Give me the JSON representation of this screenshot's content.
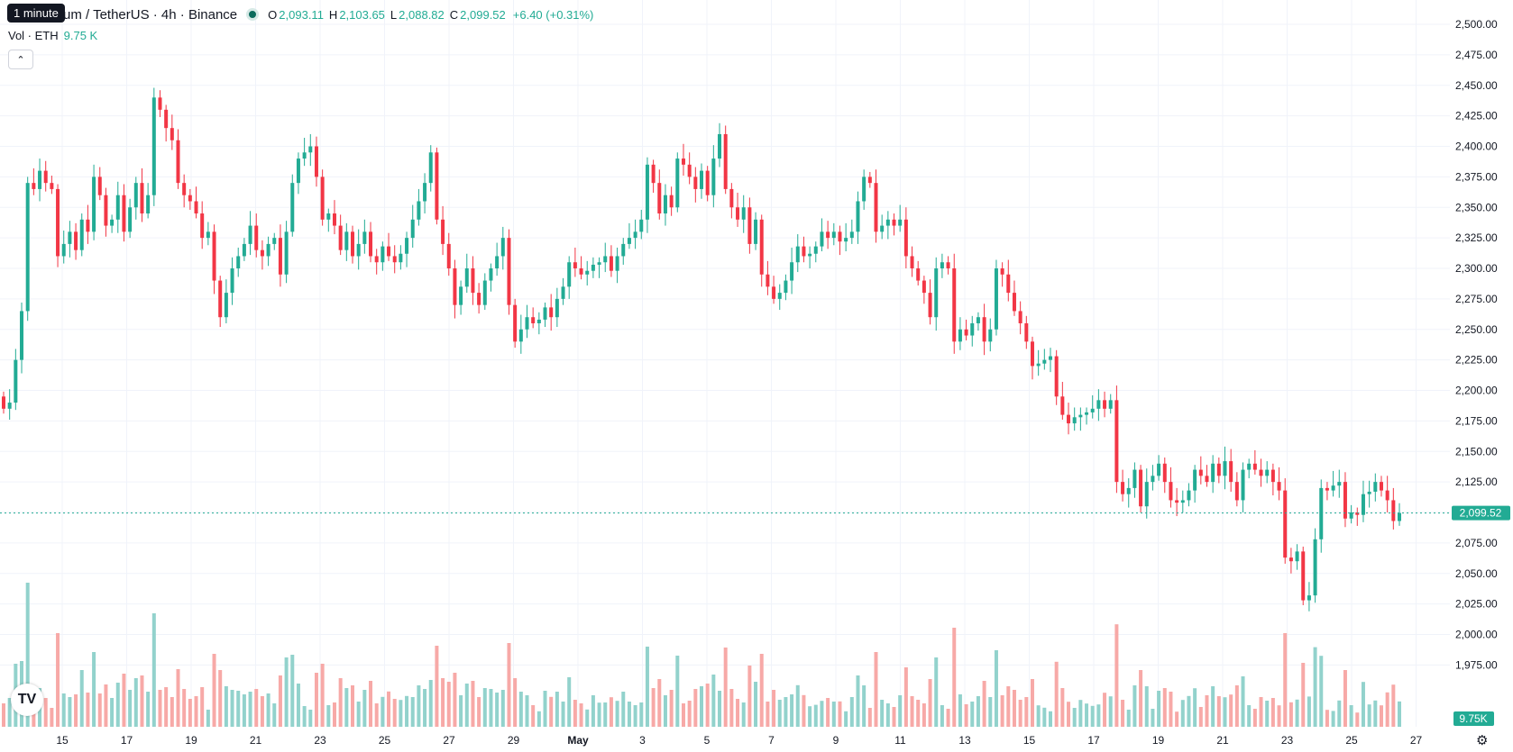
{
  "header": {
    "tooltip": "1 minute",
    "symbol": "um / TetherUS · 4h · Binance",
    "ohlc": {
      "o_label": "O",
      "o": "2,093.11",
      "h_label": "H",
      "h": "2,103.65",
      "l_label": "L",
      "l": "2,088.82",
      "c_label": "C",
      "c": "2,099.52",
      "change": "+6.40 (+0.31%)"
    },
    "volume_label": "Vol · ETH",
    "volume_value": "9.75 K",
    "collapse_icon": "chevron-up-icon"
  },
  "logo_text": "TV",
  "settings_icon": "gear-icon",
  "colors": {
    "up": "#22ab94",
    "down": "#f23645",
    "vol_up": "#92d2cc",
    "vol_down": "#f7a9a7",
    "grid": "#f0f3fa",
    "text": "#131722"
  },
  "chart_data": {
    "type": "candlestick",
    "price_axis_ticks": [
      "2,500.00",
      "2,475.00",
      "2,450.00",
      "2,425.00",
      "2,400.00",
      "2,375.00",
      "2,350.00",
      "2,325.00",
      "2,300.00",
      "2,275.00",
      "2,250.00",
      "2,225.00",
      "2,200.00",
      "2,175.00",
      "2,150.00",
      "2,125.00",
      "2,100.00",
      "2,075.00",
      "2,050.00",
      "2,025.00",
      "2,000.00",
      "1,975.00"
    ],
    "price_axis_range": [
      1975,
      2500
    ],
    "time_axis_labels": [
      "15",
      "17",
      "19",
      "21",
      "23",
      "25",
      "27",
      "29",
      "May",
      "3",
      "5",
      "7",
      "9",
      "11",
      "13",
      "15",
      "17",
      "19",
      "21",
      "23",
      "25",
      "27"
    ],
    "current_price_label": "2,099.52",
    "current_price": 2099.52,
    "current_volume_label": "9.75K",
    "candles": [
      {
        "o": 2195,
        "c": 2185
      },
      {
        "o": 2185,
        "c": 2190
      },
      {
        "o": 2190,
        "c": 2225
      },
      {
        "o": 2225,
        "c": 2265
      },
      {
        "o": 2265,
        "c": 2370
      },
      {
        "o": 2370,
        "c": 2365
      },
      {
        "o": 2365,
        "c": 2380
      },
      {
        "o": 2380,
        "c": 2370
      },
      {
        "o": 2370,
        "c": 2365
      },
      {
        "o": 2365,
        "c": 2310
      },
      {
        "o": 2310,
        "c": 2320
      },
      {
        "o": 2320,
        "c": 2330
      },
      {
        "o": 2330,
        "c": 2315
      },
      {
        "o": 2315,
        "c": 2340
      },
      {
        "o": 2340,
        "c": 2330
      },
      {
        "o": 2330,
        "c": 2375
      },
      {
        "o": 2375,
        "c": 2360
      },
      {
        "o": 2360,
        "c": 2335
      },
      {
        "o": 2335,
        "c": 2340
      },
      {
        "o": 2340,
        "c": 2360
      },
      {
        "o": 2360,
        "c": 2330
      },
      {
        "o": 2330,
        "c": 2350
      },
      {
        "o": 2350,
        "c": 2370
      },
      {
        "o": 2370,
        "c": 2345
      },
      {
        "o": 2345,
        "c": 2360
      },
      {
        "o": 2360,
        "c": 2440
      },
      {
        "o": 2440,
        "c": 2430
      },
      {
        "o": 2430,
        "c": 2415
      },
      {
        "o": 2415,
        "c": 2405
      },
      {
        "o": 2405,
        "c": 2370
      },
      {
        "o": 2370,
        "c": 2360
      },
      {
        "o": 2360,
        "c": 2355
      },
      {
        "o": 2355,
        "c": 2345
      },
      {
        "o": 2345,
        "c": 2325
      },
      {
        "o": 2325,
        "c": 2330
      },
      {
        "o": 2330,
        "c": 2290
      },
      {
        "o": 2290,
        "c": 2260
      },
      {
        "o": 2260,
        "c": 2280
      },
      {
        "o": 2280,
        "c": 2300
      },
      {
        "o": 2300,
        "c": 2310
      },
      {
        "o": 2310,
        "c": 2320
      },
      {
        "o": 2320,
        "c": 2335
      },
      {
        "o": 2335,
        "c": 2315
      },
      {
        "o": 2315,
        "c": 2310
      },
      {
        "o": 2310,
        "c": 2320
      },
      {
        "o": 2320,
        "c": 2325
      },
      {
        "o": 2325,
        "c": 2295
      },
      {
        "o": 2295,
        "c": 2330
      },
      {
        "o": 2330,
        "c": 2370
      },
      {
        "o": 2370,
        "c": 2390
      },
      {
        "o": 2390,
        "c": 2395
      },
      {
        "o": 2395,
        "c": 2400
      },
      {
        "o": 2400,
        "c": 2375
      },
      {
        "o": 2375,
        "c": 2340
      },
      {
        "o": 2340,
        "c": 2345
      },
      {
        "o": 2345,
        "c": 2335
      },
      {
        "o": 2335,
        "c": 2315
      },
      {
        "o": 2315,
        "c": 2330
      },
      {
        "o": 2330,
        "c": 2310
      },
      {
        "o": 2310,
        "c": 2320
      },
      {
        "o": 2320,
        "c": 2330
      },
      {
        "o": 2330,
        "c": 2310
      },
      {
        "o": 2310,
        "c": 2305
      },
      {
        "o": 2305,
        "c": 2318
      },
      {
        "o": 2318,
        "c": 2310
      },
      {
        "o": 2310,
        "c": 2305
      },
      {
        "o": 2305,
        "c": 2312
      },
      {
        "o": 2312,
        "c": 2325
      },
      {
        "o": 2325,
        "c": 2340
      },
      {
        "o": 2340,
        "c": 2355
      },
      {
        "o": 2355,
        "c": 2370
      },
      {
        "o": 2370,
        "c": 2395
      },
      {
        "o": 2395,
        "c": 2340
      },
      {
        "o": 2340,
        "c": 2320
      },
      {
        "o": 2320,
        "c": 2300
      },
      {
        "o": 2300,
        "c": 2270
      },
      {
        "o": 2270,
        "c": 2285
      },
      {
        "o": 2285,
        "c": 2300
      },
      {
        "o": 2300,
        "c": 2280
      },
      {
        "o": 2280,
        "c": 2270
      },
      {
        "o": 2270,
        "c": 2290
      },
      {
        "o": 2290,
        "c": 2300
      },
      {
        "o": 2300,
        "c": 2310
      },
      {
        "o": 2310,
        "c": 2325
      },
      {
        "o": 2325,
        "c": 2270
      },
      {
        "o": 2270,
        "c": 2240
      },
      {
        "o": 2240,
        "c": 2250
      },
      {
        "o": 2250,
        "c": 2260
      },
      {
        "o": 2260,
        "c": 2255
      },
      {
        "o": 2255,
        "c": 2258
      },
      {
        "o": 2258,
        "c": 2268
      },
      {
        "o": 2268,
        "c": 2260
      },
      {
        "o": 2260,
        "c": 2275
      },
      {
        "o": 2275,
        "c": 2285
      },
      {
        "o": 2285,
        "c": 2305
      },
      {
        "o": 2305,
        "c": 2300
      },
      {
        "o": 2300,
        "c": 2295
      },
      {
        "o": 2295,
        "c": 2298
      },
      {
        "o": 2298,
        "c": 2303
      },
      {
        "o": 2303,
        "c": 2305
      },
      {
        "o": 2305,
        "c": 2310
      },
      {
        "o": 2310,
        "c": 2298
      },
      {
        "o": 2298,
        "c": 2310
      },
      {
        "o": 2310,
        "c": 2320
      },
      {
        "o": 2320,
        "c": 2325
      },
      {
        "o": 2325,
        "c": 2330
      },
      {
        "o": 2330,
        "c": 2340
      },
      {
        "o": 2340,
        "c": 2385
      },
      {
        "o": 2385,
        "c": 2370
      },
      {
        "o": 2370,
        "c": 2345
      },
      {
        "o": 2345,
        "c": 2360
      },
      {
        "o": 2360,
        "c": 2350
      },
      {
        "o": 2350,
        "c": 2390
      },
      {
        "o": 2390,
        "c": 2385
      },
      {
        "o": 2385,
        "c": 2375
      },
      {
        "o": 2375,
        "c": 2365
      },
      {
        "o": 2365,
        "c": 2380
      },
      {
        "o": 2380,
        "c": 2360
      },
      {
        "o": 2360,
        "c": 2390
      },
      {
        "o": 2390,
        "c": 2410
      },
      {
        "o": 2410,
        "c": 2365
      },
      {
        "o": 2365,
        "c": 2350
      },
      {
        "o": 2350,
        "c": 2340
      },
      {
        "o": 2340,
        "c": 2350
      },
      {
        "o": 2350,
        "c": 2320
      },
      {
        "o": 2320,
        "c": 2340
      },
      {
        "o": 2340,
        "c": 2295
      },
      {
        "o": 2295,
        "c": 2285
      },
      {
        "o": 2285,
        "c": 2275
      },
      {
        "o": 2275,
        "c": 2280
      },
      {
        "o": 2280,
        "c": 2290
      },
      {
        "o": 2290,
        "c": 2305
      },
      {
        "o": 2305,
        "c": 2318
      },
      {
        "o": 2318,
        "c": 2310
      },
      {
        "o": 2310,
        "c": 2312
      },
      {
        "o": 2312,
        "c": 2318
      },
      {
        "o": 2318,
        "c": 2330
      },
      {
        "o": 2330,
        "c": 2325
      },
      {
        "o": 2325,
        "c": 2330
      },
      {
        "o": 2330,
        "c": 2322
      },
      {
        "o": 2322,
        "c": 2325
      },
      {
        "o": 2325,
        "c": 2330
      },
      {
        "o": 2330,
        "c": 2355
      },
      {
        "o": 2355,
        "c": 2375
      },
      {
        "o": 2375,
        "c": 2370
      },
      {
        "o": 2370,
        "c": 2330
      },
      {
        "o": 2330,
        "c": 2335
      },
      {
        "o": 2335,
        "c": 2340
      },
      {
        "o": 2340,
        "c": 2335
      },
      {
        "o": 2335,
        "c": 2340
      },
      {
        "o": 2340,
        "c": 2310
      },
      {
        "o": 2310,
        "c": 2300
      },
      {
        "o": 2300,
        "c": 2290
      },
      {
        "o": 2290,
        "c": 2280
      },
      {
        "o": 2280,
        "c": 2260
      },
      {
        "o": 2260,
        "c": 2300
      },
      {
        "o": 2300,
        "c": 2305
      },
      {
        "o": 2305,
        "c": 2300
      },
      {
        "o": 2300,
        "c": 2240
      },
      {
        "o": 2240,
        "c": 2250
      },
      {
        "o": 2250,
        "c": 2245
      },
      {
        "o": 2245,
        "c": 2255
      },
      {
        "o": 2255,
        "c": 2260
      },
      {
        "o": 2260,
        "c": 2240
      },
      {
        "o": 2240,
        "c": 2250
      },
      {
        "o": 2250,
        "c": 2300
      },
      {
        "o": 2300,
        "c": 2295
      },
      {
        "o": 2295,
        "c": 2280
      },
      {
        "o": 2280,
        "c": 2265
      },
      {
        "o": 2265,
        "c": 2255
      },
      {
        "o": 2255,
        "c": 2240
      },
      {
        "o": 2240,
        "c": 2220
      },
      {
        "o": 2220,
        "c": 2222
      },
      {
        "o": 2222,
        "c": 2225
      },
      {
        "o": 2225,
        "c": 2228
      },
      {
        "o": 2228,
        "c": 2195
      },
      {
        "o": 2195,
        "c": 2180
      },
      {
        "o": 2180,
        "c": 2173
      },
      {
        "o": 2173,
        "c": 2178
      },
      {
        "o": 2178,
        "c": 2180
      },
      {
        "o": 2180,
        "c": 2182
      },
      {
        "o": 2182,
        "c": 2185
      },
      {
        "o": 2185,
        "c": 2192
      },
      {
        "o": 2192,
        "c": 2185
      },
      {
        "o": 2185,
        "c": 2192
      },
      {
        "o": 2192,
        "c": 2125
      },
      {
        "o": 2125,
        "c": 2115
      },
      {
        "o": 2115,
        "c": 2120
      },
      {
        "o": 2120,
        "c": 2135
      },
      {
        "o": 2135,
        "c": 2105
      },
      {
        "o": 2105,
        "c": 2125
      },
      {
        "o": 2125,
        "c": 2130
      },
      {
        "o": 2130,
        "c": 2140
      },
      {
        "o": 2140,
        "c": 2125
      },
      {
        "o": 2125,
        "c": 2110
      },
      {
        "o": 2110,
        "c": 2108
      },
      {
        "o": 2108,
        "c": 2110
      },
      {
        "o": 2110,
        "c": 2118
      },
      {
        "o": 2118,
        "c": 2135
      },
      {
        "o": 2135,
        "c": 2130
      },
      {
        "o": 2130,
        "c": 2125
      },
      {
        "o": 2125,
        "c": 2140
      },
      {
        "o": 2140,
        "c": 2130
      },
      {
        "o": 2130,
        "c": 2142
      },
      {
        "o": 2142,
        "c": 2125
      },
      {
        "o": 2125,
        "c": 2110
      },
      {
        "o": 2110,
        "c": 2135
      },
      {
        "o": 2135,
        "c": 2140
      },
      {
        "o": 2140,
        "c": 2135
      },
      {
        "o": 2135,
        "c": 2130
      },
      {
        "o": 2130,
        "c": 2135
      },
      {
        "o": 2135,
        "c": 2125
      },
      {
        "o": 2125,
        "c": 2118
      },
      {
        "o": 2118,
        "c": 2063
      },
      {
        "o": 2063,
        "c": 2060
      },
      {
        "o": 2060,
        "c": 2068
      },
      {
        "o": 2068,
        "c": 2028
      },
      {
        "o": 2028,
        "c": 2032
      },
      {
        "o": 2032,
        "c": 2078
      },
      {
        "o": 2078,
        "c": 2120
      },
      {
        "o": 2120,
        "c": 2118
      },
      {
        "o": 2118,
        "c": 2122
      },
      {
        "o": 2122,
        "c": 2125
      },
      {
        "o": 2125,
        "c": 2095
      },
      {
        "o": 2095,
        "c": 2100
      },
      {
        "o": 2100,
        "c": 2098
      },
      {
        "o": 2098,
        "c": 2115
      },
      {
        "o": 2115,
        "c": 2117
      },
      {
        "o": 2117,
        "c": 2125
      },
      {
        "o": 2125,
        "c": 2118
      },
      {
        "o": 2118,
        "c": 2110
      },
      {
        "o": 2110,
        "c": 2093
      },
      {
        "o": 2093,
        "c": 2099.52
      }
    ]
  }
}
